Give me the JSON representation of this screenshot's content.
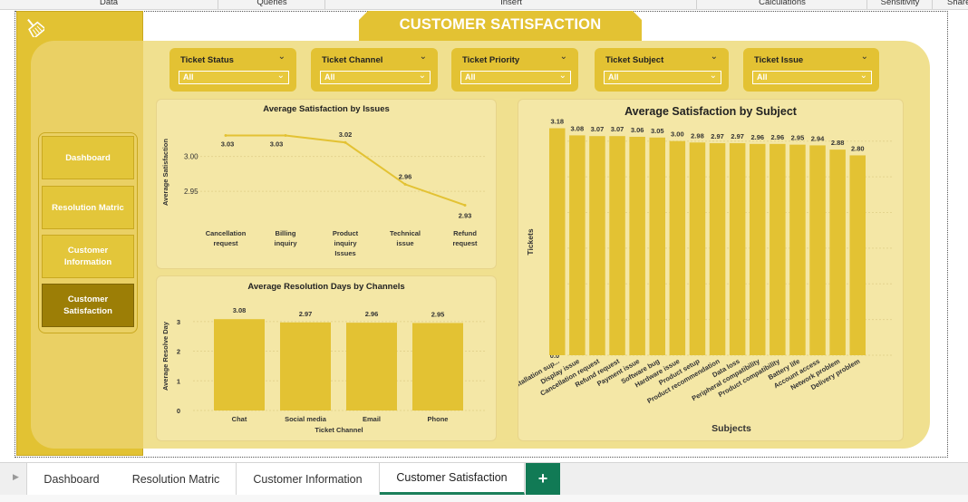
{
  "ribbon": {
    "tabs": [
      "Data",
      "Queries",
      "Insert",
      "Calculations",
      "Sensitivity",
      "Share"
    ]
  },
  "header": {
    "title": "CUSTOMER SATISFACTION"
  },
  "sidebar": {
    "icon": "broom-icon",
    "items": [
      {
        "label": "Dashboard",
        "active": false
      },
      {
        "label": "Resolution Matric",
        "active": false
      },
      {
        "label": "Customer Information",
        "active": false
      },
      {
        "label": "Customer Satisfaction",
        "active": true
      }
    ]
  },
  "filters": [
    {
      "label": "Ticket Status",
      "value": "All"
    },
    {
      "label": "Ticket Channel",
      "value": "All"
    },
    {
      "label": "Ticket Priority",
      "value": "All"
    },
    {
      "label": "Ticket Subject",
      "value": "All"
    },
    {
      "label": "Ticket Issue",
      "value": "All"
    }
  ],
  "chart_data": [
    {
      "id": "issues",
      "type": "line",
      "title": "Average Satisfaction by Issues",
      "xlabel": "Issues",
      "ylabel": "Average Satisfaction",
      "categories": [
        "Cancellation request",
        "Billing inquiry",
        "Product inquiry",
        "Technical issue",
        "Refund request"
      ],
      "values": [
        3.03,
        3.03,
        3.02,
        2.96,
        2.93
      ],
      "yticks": [
        "3.00",
        "2.95"
      ],
      "ylim": [
        2.915,
        3.045
      ],
      "color": "#e3c233"
    },
    {
      "id": "channels",
      "type": "bar",
      "title": "Average Resolution Days by Channels",
      "xlabel": "Ticket Channel",
      "ylabel": "Average Resolve Day",
      "categories": [
        "Chat",
        "Social media",
        "Email",
        "Phone"
      ],
      "values": [
        3.08,
        2.97,
        2.96,
        2.95
      ],
      "yticks": [
        "3",
        "2",
        "1",
        "0"
      ],
      "ylim": [
        0,
        3.3
      ],
      "color": "#e3c233"
    },
    {
      "id": "subjects",
      "type": "bar",
      "title": "Average Satisfaction by Subject",
      "xlabel": "Subjects",
      "ylabel": "Tickets",
      "categories": [
        "Installation sup...",
        "Display issue",
        "Cancellation request",
        "Refund request",
        "Payment issue",
        "Software bug",
        "Hardware issue",
        "Product setup",
        "Product recommendation",
        "Data loss",
        "Peripheral compatibility",
        "Product compatibility",
        "Battery life",
        "Account access",
        "Network problem",
        "Delivery problem"
      ],
      "values": [
        3.18,
        3.08,
        3.07,
        3.07,
        3.06,
        3.05,
        3.0,
        2.98,
        2.97,
        2.97,
        2.96,
        2.96,
        2.95,
        2.94,
        2.88,
        2.8
      ],
      "yticks": [
        "3.0",
        "2.5",
        "2.0",
        "1.5",
        "1.0",
        "0.5",
        "0.0"
      ],
      "ylim": [
        0,
        3.25
      ],
      "color": "#e3c233"
    }
  ],
  "sheet_tabs": [
    {
      "label": "Dashboard",
      "active": false
    },
    {
      "label": "Resolution Matric",
      "active": false
    },
    {
      "label": "Customer Information",
      "active": false
    },
    {
      "label": "Customer Satisfaction",
      "active": true
    }
  ],
  "add_sheet_label": "+"
}
